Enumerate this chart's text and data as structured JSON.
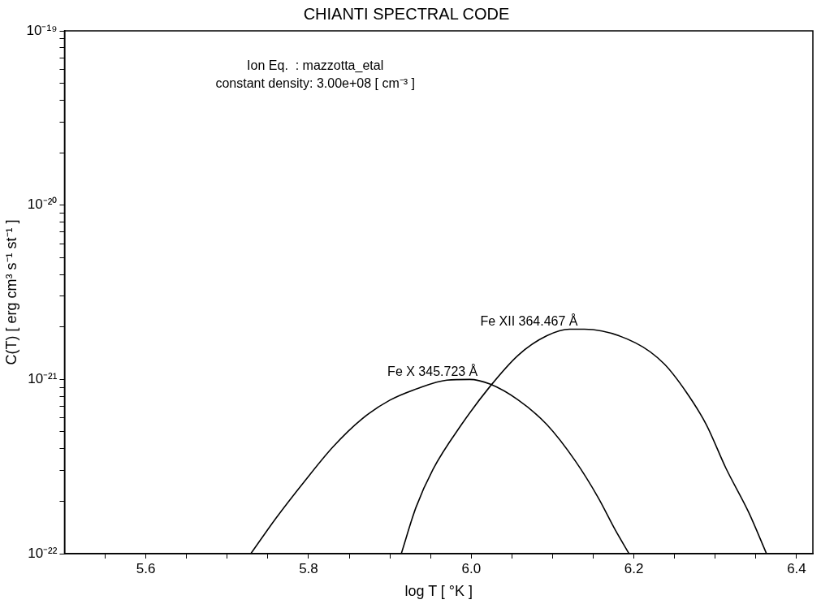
{
  "chart_data": {
    "type": "line",
    "title": "CHIANTI SPECTRAL CODE",
    "xlabel": "log T [ °K ]",
    "ylabel": "C(T) [ erg cm³ s⁻¹ st⁻¹ ]",
    "annotations": [
      "Ion Eq.  : mazzotta_etal",
      "constant density: 3.00e+08 [ cm⁻³ ]"
    ],
    "log": "y",
    "grid": false,
    "legend": false,
    "marker": "none",
    "line_style": "solid",
    "xlim": [
      5.5,
      6.42
    ],
    "ylim": [
      1e-22,
      1e-19
    ],
    "xticks": [
      {
        "value": 5.55,
        "label": null
      },
      {
        "value": 5.6,
        "label": "5.6"
      },
      {
        "value": 5.65,
        "label": null
      },
      {
        "value": 5.7,
        "label": null
      },
      {
        "value": 5.75,
        "label": null
      },
      {
        "value": 5.8,
        "label": "5.8"
      },
      {
        "value": 5.85,
        "label": null
      },
      {
        "value": 5.9,
        "label": null
      },
      {
        "value": 5.95,
        "label": null
      },
      {
        "value": 6.0,
        "label": "6.0"
      },
      {
        "value": 6.05,
        "label": null
      },
      {
        "value": 6.1,
        "label": null
      },
      {
        "value": 6.15,
        "label": null
      },
      {
        "value": 6.2,
        "label": "6.2"
      },
      {
        "value": 6.25,
        "label": null
      },
      {
        "value": 6.3,
        "label": null
      },
      {
        "value": 6.35,
        "label": null
      },
      {
        "value": 6.4,
        "label": "6.4"
      }
    ],
    "yticks": [
      {
        "value": 1e-22,
        "label": "10⁻²²"
      },
      {
        "value": 2e-22,
        "label": null
      },
      {
        "value": 3e-22,
        "label": null
      },
      {
        "value": 4e-22,
        "label": null
      },
      {
        "value": 5e-22,
        "label": null
      },
      {
        "value": 6e-22,
        "label": null
      },
      {
        "value": 7e-22,
        "label": null
      },
      {
        "value": 8e-22,
        "label": null
      },
      {
        "value": 9e-22,
        "label": null
      },
      {
        "value": 1e-21,
        "label": "10⁻²¹"
      },
      {
        "value": 2e-21,
        "label": null
      },
      {
        "value": 3e-21,
        "label": null
      },
      {
        "value": 4e-21,
        "label": null
      },
      {
        "value": 5e-21,
        "label": null
      },
      {
        "value": 6e-21,
        "label": null
      },
      {
        "value": 7e-21,
        "label": null
      },
      {
        "value": 8e-21,
        "label": null
      },
      {
        "value": 9e-21,
        "label": null
      },
      {
        "value": 1e-20,
        "label": "10⁻²⁰"
      },
      {
        "value": 2e-20,
        "label": null
      },
      {
        "value": 3e-20,
        "label": null
      },
      {
        "value": 4e-20,
        "label": null
      },
      {
        "value": 5e-20,
        "label": null
      },
      {
        "value": 6e-20,
        "label": null
      },
      {
        "value": 7e-20,
        "label": null
      },
      {
        "value": 8e-20,
        "label": null
      },
      {
        "value": 9e-20,
        "label": null
      },
      {
        "value": 1e-19,
        "label": "10⁻¹⁹"
      }
    ],
    "series": [
      {
        "name": "Fe X 345.723 Å",
        "color": "#000000",
        "x": [
          5.729,
          5.76,
          5.795,
          5.83,
          5.865,
          5.9,
          5.935,
          5.97,
          5.998,
          6.023,
          6.058,
          6.093,
          6.128,
          6.156,
          6.177,
          6.194
        ],
        "values": [
          1e-22,
          1.6e-22,
          2.6e-22,
          4.1e-22,
          5.9e-22,
          7.6e-22,
          8.9e-22,
          9.9e-22,
          1e-21,
          9.4e-22,
          7.6e-22,
          5.5e-22,
          3.4e-22,
          2.1e-22,
          1.37e-22,
          1e-22
        ]
      },
      {
        "name": "Fe XII 364.467 Å",
        "color": "#000000",
        "x": [
          5.914,
          5.932,
          5.953,
          5.988,
          6.023,
          6.058,
          6.093,
          6.121,
          6.139,
          6.202,
          6.237,
          6.264,
          6.289,
          6.313,
          6.341,
          6.363
        ],
        "values": [
          1e-22,
          1.84e-22,
          3.05e-22,
          5.5e-22,
          9.1e-22,
          1.38e-21,
          1.78e-21,
          1.94e-21,
          1.94e-21,
          1.62e-21,
          1.23e-21,
          8.5e-22,
          5.5e-22,
          3.1e-22,
          1.73e-22,
          1e-22
        ]
      }
    ]
  }
}
